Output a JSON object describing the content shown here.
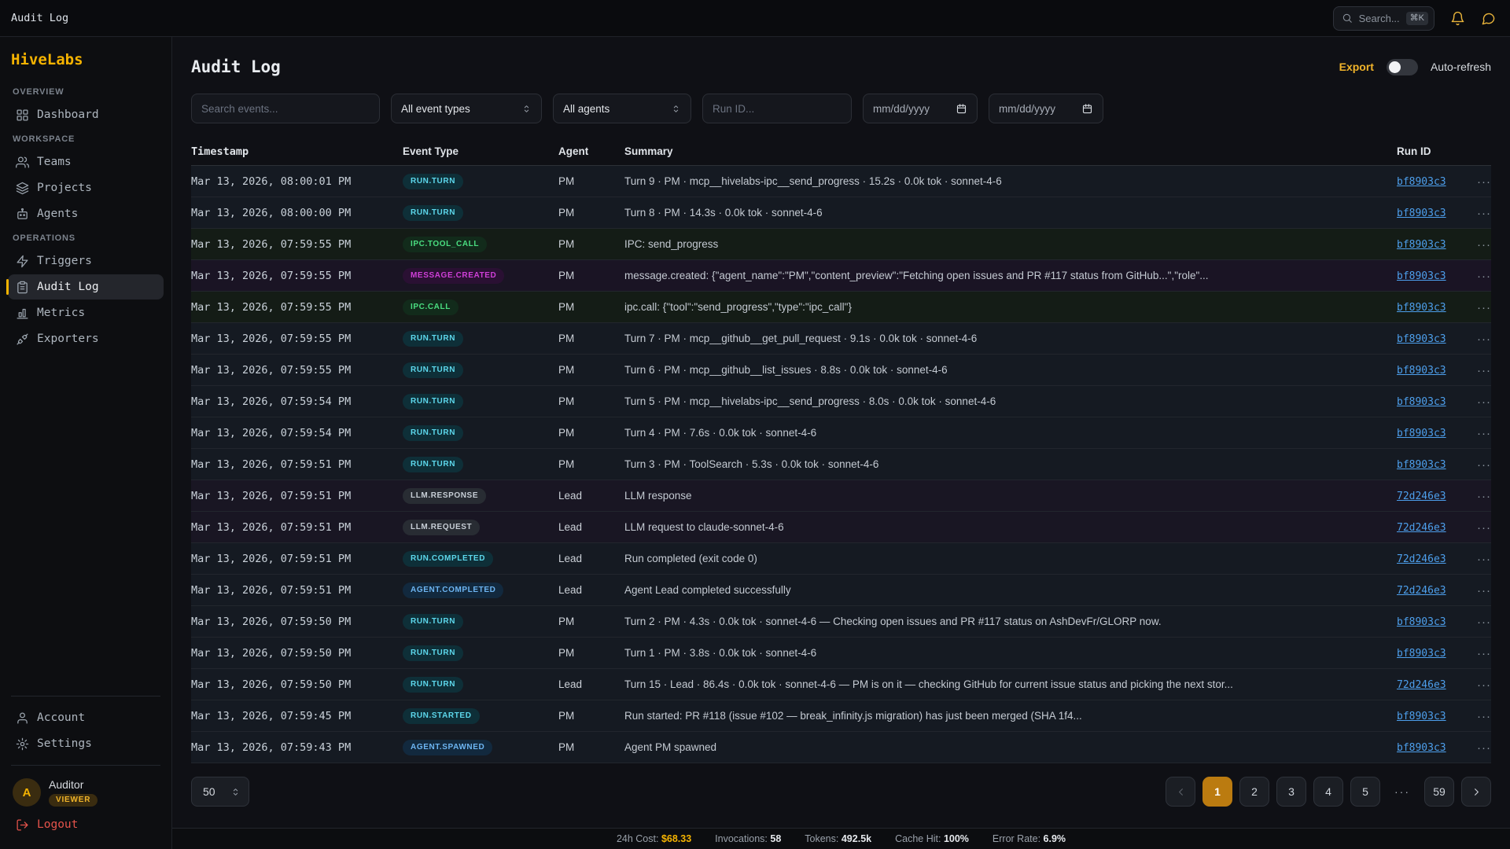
{
  "topbar": {
    "title": "Audit Log",
    "search_placeholder": "Search...",
    "search_shortcut": "⌘K"
  },
  "sidebar": {
    "brand": "HiveLabs",
    "sections": [
      {
        "label": "OVERVIEW",
        "items": [
          {
            "label": "Dashboard",
            "icon": "dashboard-icon",
            "active": false
          }
        ]
      },
      {
        "label": "WORKSPACE",
        "items": [
          {
            "label": "Teams",
            "icon": "teams-icon",
            "active": false
          },
          {
            "label": "Projects",
            "icon": "projects-icon",
            "active": false
          },
          {
            "label": "Agents",
            "icon": "agents-icon",
            "active": false
          }
        ]
      },
      {
        "label": "OPERATIONS",
        "items": [
          {
            "label": "Triggers",
            "icon": "triggers-icon",
            "active": false
          },
          {
            "label": "Audit Log",
            "icon": "audit-log-icon",
            "active": true
          },
          {
            "label": "Metrics",
            "icon": "metrics-icon",
            "active": false
          },
          {
            "label": "Exporters",
            "icon": "exporters-icon",
            "active": false
          }
        ]
      }
    ],
    "footer_items": [
      {
        "label": "Account",
        "icon": "account-icon"
      },
      {
        "label": "Settings",
        "icon": "settings-icon"
      }
    ],
    "user": {
      "name": "Auditor",
      "role": "VIEWER",
      "avatar_initial": "A"
    },
    "logout_label": "Logout"
  },
  "page": {
    "title": "Audit Log",
    "export_label": "Export",
    "auto_refresh_label": "Auto-refresh",
    "auto_refresh_enabled": false
  },
  "filters": {
    "search_placeholder": "Search events...",
    "event_type_value": "All event types",
    "agent_value": "All agents",
    "run_id_placeholder": "Run ID...",
    "date_from": "mm/dd/yyyy",
    "date_to": "mm/dd/yyyy"
  },
  "table": {
    "columns": [
      "Timestamp",
      "Event Type",
      "Agent",
      "Summary",
      "Run ID"
    ],
    "rows": [
      {
        "timestamp": "Mar 13, 2026, 08:00:01 PM",
        "event_type": "RUN.TURN",
        "tone": "cyan",
        "tint": "blue",
        "agent": "PM",
        "summary": "Turn 9 · PM · mcp__hivelabs-ipc__send_progress · 15.2s · 0.0k tok · sonnet-4-6",
        "run_id": "bf8903c3"
      },
      {
        "timestamp": "Mar 13, 2026, 08:00:00 PM",
        "event_type": "RUN.TURN",
        "tone": "cyan",
        "tint": "blue",
        "agent": "PM",
        "summary": "Turn 8 · PM · 14.3s · 0.0k tok · sonnet-4-6",
        "run_id": "bf8903c3"
      },
      {
        "timestamp": "Mar 13, 2026, 07:59:55 PM",
        "event_type": "IPC.TOOL_CALL",
        "tone": "green",
        "tint": "green",
        "agent": "PM",
        "summary": "IPC: send_progress",
        "run_id": "bf8903c3"
      },
      {
        "timestamp": "Mar 13, 2026, 07:59:55 PM",
        "event_type": "MESSAGE.CREATED",
        "tone": "magenta",
        "tint": "purple",
        "agent": "PM",
        "summary": "message.created: {\"agent_name\":\"PM\",\"content_preview\":\"Fetching open issues and PR #117 status from GitHub...\",\"role\"...",
        "run_id": "bf8903c3"
      },
      {
        "timestamp": "Mar 13, 2026, 07:59:55 PM",
        "event_type": "IPC.CALL",
        "tone": "green",
        "tint": "green",
        "agent": "PM",
        "summary": "ipc.call: {\"tool\":\"send_progress\",\"type\":\"ipc_call\"}",
        "run_id": "bf8903c3"
      },
      {
        "timestamp": "Mar 13, 2026, 07:59:55 PM",
        "event_type": "RUN.TURN",
        "tone": "cyan",
        "tint": "blue",
        "agent": "PM",
        "summary": "Turn 7 · PM · mcp__github__get_pull_request · 9.1s · 0.0k tok · sonnet-4-6",
        "run_id": "bf8903c3"
      },
      {
        "timestamp": "Mar 13, 2026, 07:59:55 PM",
        "event_type": "RUN.TURN",
        "tone": "cyan",
        "tint": "blue",
        "agent": "PM",
        "summary": "Turn 6 · PM · mcp__github__list_issues · 8.8s · 0.0k tok · sonnet-4-6",
        "run_id": "bf8903c3"
      },
      {
        "timestamp": "Mar 13, 2026, 07:59:54 PM",
        "event_type": "RUN.TURN",
        "tone": "cyan",
        "tint": "blue",
        "agent": "PM",
        "summary": "Turn 5 · PM · mcp__hivelabs-ipc__send_progress · 8.0s · 0.0k tok · sonnet-4-6",
        "run_id": "bf8903c3"
      },
      {
        "timestamp": "Mar 13, 2026, 07:59:54 PM",
        "event_type": "RUN.TURN",
        "tone": "cyan",
        "tint": "blue",
        "agent": "PM",
        "summary": "Turn 4 · PM · 7.6s · 0.0k tok · sonnet-4-6",
        "run_id": "bf8903c3"
      },
      {
        "timestamp": "Mar 13, 2026, 07:59:51 PM",
        "event_type": "RUN.TURN",
        "tone": "cyan",
        "tint": "blue",
        "agent": "PM",
        "summary": "Turn 3 · PM · ToolSearch · 5.3s · 0.0k tok · sonnet-4-6",
        "run_id": "bf8903c3"
      },
      {
        "timestamp": "Mar 13, 2026, 07:59:51 PM",
        "event_type": "LLM.RESPONSE",
        "tone": "gray",
        "tint": "violet",
        "agent": "Lead",
        "summary": "LLM response",
        "run_id": "72d246e3"
      },
      {
        "timestamp": "Mar 13, 2026, 07:59:51 PM",
        "event_type": "LLM.REQUEST",
        "tone": "gray",
        "tint": "violet",
        "agent": "Lead",
        "summary": "LLM request to claude-sonnet-4-6",
        "run_id": "72d246e3"
      },
      {
        "timestamp": "Mar 13, 2026, 07:59:51 PM",
        "event_type": "RUN.COMPLETED",
        "tone": "cyan",
        "tint": "blue",
        "agent": "Lead",
        "summary": "Run completed (exit code 0)",
        "run_id": "72d246e3"
      },
      {
        "timestamp": "Mar 13, 2026, 07:59:51 PM",
        "event_type": "AGENT.COMPLETED",
        "tone": "blue",
        "tint": "blue",
        "agent": "Lead",
        "summary": "Agent Lead completed successfully",
        "run_id": "72d246e3"
      },
      {
        "timestamp": "Mar 13, 2026, 07:59:50 PM",
        "event_type": "RUN.TURN",
        "tone": "cyan",
        "tint": "blue",
        "agent": "PM",
        "summary": "Turn 2 · PM · 4.3s · 0.0k tok · sonnet-4-6 — Checking open issues and PR #117 status on AshDevFr/GLORP now.",
        "run_id": "bf8903c3"
      },
      {
        "timestamp": "Mar 13, 2026, 07:59:50 PM",
        "event_type": "RUN.TURN",
        "tone": "cyan",
        "tint": "blue",
        "agent": "PM",
        "summary": "Turn 1 · PM · 3.8s · 0.0k tok · sonnet-4-6",
        "run_id": "bf8903c3"
      },
      {
        "timestamp": "Mar 13, 2026, 07:59:50 PM",
        "event_type": "RUN.TURN",
        "tone": "cyan",
        "tint": "blue",
        "agent": "Lead",
        "summary": "Turn 15 · Lead · 86.4s · 0.0k tok · sonnet-4-6 — PM is on it — checking GitHub for current issue status and picking the next stor...",
        "run_id": "72d246e3"
      },
      {
        "timestamp": "Mar 13, 2026, 07:59:45 PM",
        "event_type": "RUN.STARTED",
        "tone": "cyan",
        "tint": "blue",
        "agent": "PM",
        "summary": "Run started: PR #118 (issue #102 — break_infinity.js migration) has just been merged (SHA 1f4...",
        "run_id": "bf8903c3"
      },
      {
        "timestamp": "Mar 13, 2026, 07:59:43 PM",
        "event_type": "AGENT.SPAWNED",
        "tone": "blue",
        "tint": "blue",
        "agent": "PM",
        "summary": "Agent PM spawned",
        "run_id": "bf8903c3"
      }
    ]
  },
  "pagination": {
    "page_size": "50",
    "pages": [
      "1",
      "2",
      "3",
      "4",
      "5"
    ],
    "gap": "···",
    "last_page": "59",
    "current": "1"
  },
  "statusbar": {
    "items": [
      {
        "label": "24h Cost:",
        "value": "$68.33",
        "highlight": true
      },
      {
        "label": "Invocations:",
        "value": "58",
        "highlight": false
      },
      {
        "label": "Tokens:",
        "value": "492.5k",
        "highlight": false
      },
      {
        "label": "Cache Hit:",
        "value": "100%",
        "highlight": false
      },
      {
        "label": "Error Rate:",
        "value": "6.9%",
        "highlight": false
      }
    ]
  },
  "colors": {
    "accent": "#f5b301",
    "active_page": "#bb7b10",
    "link": "#4d9fec",
    "logout": "#e5534b",
    "badge_cyan": "#5dd8ec",
    "badge_green": "#4ade80",
    "badge_magenta": "#cf3fd8",
    "badge_blue": "#6db5f2"
  }
}
